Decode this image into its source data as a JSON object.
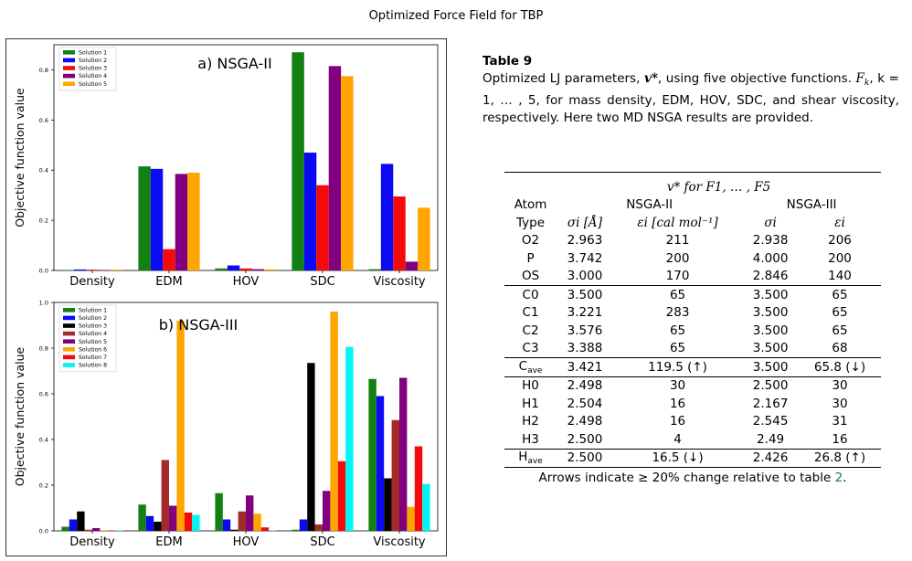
{
  "page": {
    "title": "Optimized Force Field for TBP"
  },
  "caption": {
    "label": "Table 9",
    "text_1": "Optimized LJ parameters, ",
    "text_v": "v*",
    "text_2": ", using five objective functions. ",
    "text_F": "F",
    "text_k": "k",
    "text_3": ", k = 1, … , 5, for mass density, EDM, HOV, SDC, and shear viscosity, respectively. Here two MD NSGA results are provided."
  },
  "table": {
    "header_group": "v* for F1, … , F5",
    "atom_label": "Atom",
    "type_label": "Type",
    "nsga2_label": "NSGA-II",
    "nsga3_label": "NSGA-III",
    "col_sigma_unit": "σi [Å]",
    "col_eps_unit": "εi [cal mol⁻¹]",
    "col_sigma": "σi",
    "col_eps": "εi",
    "rows": [
      {
        "atom": "O2",
        "s2": "2.963",
        "e2": "211",
        "s3": "2.938",
        "e3": "206"
      },
      {
        "atom": "P",
        "s2": "3.742",
        "e2": "200",
        "s3": "4.000",
        "e3": "200"
      },
      {
        "atom": "OS",
        "s2": "3.000",
        "e2": "170",
        "s3": "2.846",
        "e3": "140"
      },
      {
        "atom": "C0",
        "s2": "3.500",
        "e2": "65",
        "s3": "3.500",
        "e3": "65"
      },
      {
        "atom": "C1",
        "s2": "3.221",
        "e2": "283",
        "s3": "3.500",
        "e3": "65"
      },
      {
        "atom": "C2",
        "s2": "3.576",
        "e2": "65",
        "s3": "3.500",
        "e3": "65"
      },
      {
        "atom": "C3",
        "s2": "3.388",
        "e2": "65",
        "s3": "3.500",
        "e3": "68"
      },
      {
        "atom": "C",
        "atom_sub": "ave",
        "s2": "3.421",
        "e2": "119.5 (↑)",
        "s3": "3.500",
        "e3": "65.8 (↓)"
      },
      {
        "atom": "H0",
        "s2": "2.498",
        "e2": "30",
        "s3": "2.500",
        "e3": "30"
      },
      {
        "atom": "H1",
        "s2": "2.504",
        "e2": "16",
        "s3": "2.167",
        "e3": "30"
      },
      {
        "atom": "H2",
        "s2": "2.498",
        "e2": "16",
        "s3": "2.545",
        "e3": "31"
      },
      {
        "atom": "H3",
        "s2": "2.500",
        "e2": "4",
        "s3": "2.49",
        "e3": "16"
      },
      {
        "atom": "H",
        "atom_sub": "ave",
        "s2": "2.500",
        "e2": "16.5 (↓)",
        "s3": "2.426",
        "e3": "26.8 (↑)"
      }
    ],
    "footnote_pre": "Arrows indicate ≥ 20% change relative to table ",
    "footnote_ref": "2",
    "footnote_post": "."
  },
  "colors": {
    "ref_link": "#1f7a3a"
  },
  "chart_data": [
    {
      "type": "bar",
      "title": "a) NSGA-II",
      "ylabel": "Objective function value",
      "categories": [
        "Density",
        "EDM",
        "HOV",
        "SDC",
        "Viscosity"
      ],
      "ylim": [
        0,
        0.9
      ],
      "yticks": [
        0.0,
        0.2,
        0.4,
        0.6,
        0.8
      ],
      "legend_position": "top-left",
      "series": [
        {
          "name": "Solution 1",
          "color": "#128012",
          "values": [
            0.002,
            0.415,
            0.008,
            0.87,
            0.005
          ]
        },
        {
          "name": "Solution 2",
          "color": "#0a0af5",
          "values": [
            0.004,
            0.405,
            0.02,
            0.47,
            0.425
          ]
        },
        {
          "name": "Solution 3",
          "color": "#f50a0a",
          "values": [
            0.003,
            0.085,
            0.008,
            0.34,
            0.295
          ]
        },
        {
          "name": "Solution 4",
          "color": "#800080",
          "values": [
            0.002,
            0.385,
            0.005,
            0.815,
            0.035
          ]
        },
        {
          "name": "Solution 5",
          "color": "#ffa500",
          "values": [
            0.003,
            0.39,
            0.004,
            0.775,
            0.25
          ]
        }
      ]
    },
    {
      "type": "bar",
      "title": "b) NSGA-III",
      "ylabel": "Objective function value",
      "categories": [
        "Density",
        "EDM",
        "HOV",
        "SDC",
        "Viscosity"
      ],
      "ylim": [
        0,
        1.0
      ],
      "yticks": [
        0.0,
        0.2,
        0.4,
        0.6,
        0.8,
        1.0
      ],
      "legend_position": "top-left",
      "series": [
        {
          "name": "Solution 1",
          "color": "#128012",
          "values": [
            0.018,
            0.115,
            0.165,
            0.005,
            0.665
          ]
        },
        {
          "name": "Solution 2",
          "color": "#0a0af5",
          "values": [
            0.05,
            0.065,
            0.05,
            0.05,
            0.59
          ]
        },
        {
          "name": "Solution 3",
          "color": "#000000",
          "values": [
            0.085,
            0.04,
            0.005,
            0.735,
            0.23
          ]
        },
        {
          "name": "Solution 4",
          "color": "#a52a2a",
          "values": [
            0.005,
            0.31,
            0.085,
            0.028,
            0.485
          ]
        },
        {
          "name": "Solution 5",
          "color": "#800080",
          "values": [
            0.012,
            0.11,
            0.155,
            0.175,
            0.67
          ]
        },
        {
          "name": "Solution 6",
          "color": "#ffa500",
          "values": [
            0.002,
            0.92,
            0.075,
            0.96,
            0.105
          ]
        },
        {
          "name": "Solution 7",
          "color": "#f50a0a",
          "values": [
            0.002,
            0.08,
            0.015,
            0.305,
            0.37
          ]
        },
        {
          "name": "Solution 8",
          "color": "#00f5f5",
          "values": [
            0.002,
            0.07,
            0.002,
            0.805,
            0.205
          ]
        }
      ]
    }
  ]
}
